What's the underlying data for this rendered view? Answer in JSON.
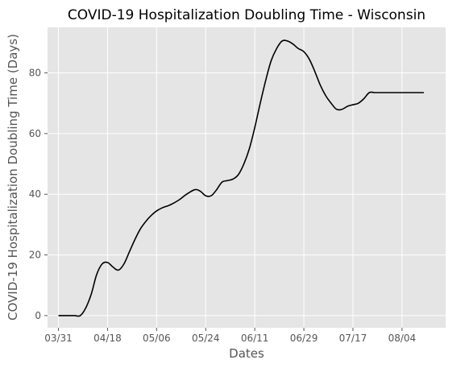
{
  "chart_data": {
    "type": "line",
    "title": "COVID-19 Hospitalization Doubling Time - Wisconsin",
    "xlabel": "Dates",
    "ylabel": "COVID-19 Hospitalization Doubling Time (Days)",
    "x_ticks": [
      "03/31",
      "04/18",
      "05/06",
      "05/24",
      "06/11",
      "06/29",
      "07/17",
      "08/04"
    ],
    "y_ticks": [
      0,
      20,
      40,
      60,
      80
    ],
    "xlim": [
      "2020-03-27",
      "2020-08-20"
    ],
    "ylim": [
      -4,
      95
    ],
    "grid": true,
    "background": "#E5E5E5",
    "line_color": "#000000",
    "series": [
      {
        "x": [
          "2020-03-31",
          "2020-04-04",
          "2020-04-06",
          "2020-04-08",
          "2020-04-10",
          "2020-04-12",
          "2020-04-14",
          "2020-04-16",
          "2020-04-18",
          "2020-04-20",
          "2020-04-22",
          "2020-04-24",
          "2020-04-26",
          "2020-04-28",
          "2020-04-30",
          "2020-05-02",
          "2020-05-04",
          "2020-05-06",
          "2020-05-08",
          "2020-05-11",
          "2020-05-14",
          "2020-05-17",
          "2020-05-20",
          "2020-05-22",
          "2020-05-24",
          "2020-05-26",
          "2020-05-28",
          "2020-05-30",
          "2020-06-01",
          "2020-06-03",
          "2020-06-05",
          "2020-06-07",
          "2020-06-09",
          "2020-06-11",
          "2020-06-13",
          "2020-06-15",
          "2020-06-17",
          "2020-06-19",
          "2020-06-21",
          "2020-06-23",
          "2020-06-25",
          "2020-06-27",
          "2020-06-29",
          "2020-07-01",
          "2020-07-03",
          "2020-07-05",
          "2020-07-07",
          "2020-07-09",
          "2020-07-11",
          "2020-07-13",
          "2020-07-15",
          "2020-07-17",
          "2020-07-19",
          "2020-07-21",
          "2020-07-23",
          "2020-07-25",
          "2020-07-27",
          "2020-07-29",
          "2020-07-31",
          "2020-08-02",
          "2020-08-04",
          "2020-08-06",
          "2020-08-08",
          "2020-08-10",
          "2020-08-12"
        ],
        "values": [
          0,
          0,
          0,
          0,
          2.5,
          7,
          13.5,
          17,
          17.5,
          16,
          15,
          17,
          21,
          25,
          28.5,
          31,
          33,
          34.5,
          35.5,
          36.5,
          38,
          40,
          41.5,
          41,
          39.5,
          39.5,
          41.5,
          44,
          44.5,
          45,
          46.5,
          50,
          55,
          62,
          70,
          77.5,
          84,
          88,
          90.5,
          90.5,
          89.5,
          88,
          87,
          84.5,
          80.5,
          76,
          72.5,
          70,
          68,
          68,
          69,
          69.5,
          70,
          71.5,
          73.5,
          73.5,
          73.5,
          73.5,
          73.5,
          73.5,
          73.5,
          73.5,
          73.5,
          73.5,
          73.5
        ]
      }
    ]
  }
}
